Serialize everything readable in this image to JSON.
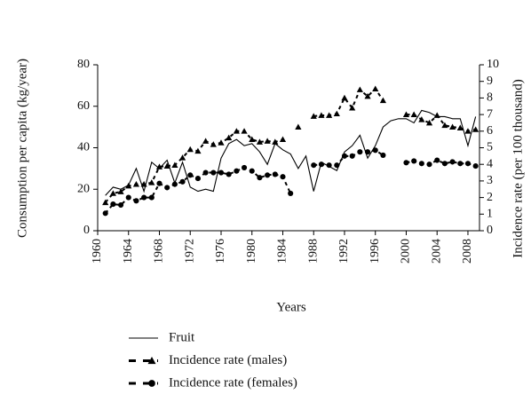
{
  "chart_data": {
    "type": "line",
    "x": [
      1961,
      1962,
      1963,
      1964,
      1965,
      1966,
      1967,
      1968,
      1969,
      1970,
      1971,
      1972,
      1973,
      1974,
      1975,
      1976,
      1977,
      1978,
      1979,
      1980,
      1981,
      1982,
      1983,
      1984,
      1985,
      1986,
      1987,
      1988,
      1989,
      1990,
      1991,
      1992,
      1993,
      1994,
      1995,
      1996,
      1997,
      1998,
      1999,
      2000,
      2001,
      2002,
      2003,
      2004,
      2005,
      2006,
      2007,
      2008,
      2009
    ],
    "series": [
      {
        "name": "Fruit",
        "color": "#000000",
        "style": "solid",
        "marker": "none",
        "values": [
          17,
          21,
          20,
          22,
          30,
          19,
          33,
          30,
          34,
          23,
          33,
          21,
          19,
          20,
          19,
          35,
          42,
          44,
          41,
          42,
          38,
          32,
          42,
          39,
          37,
          30,
          36,
          19,
          33,
          31,
          29,
          38,
          41,
          46,
          35,
          41,
          50,
          53,
          54,
          54,
          52,
          58,
          57,
          55,
          55,
          54,
          54,
          41,
          55
        ]
      },
      {
        "name": "Incidence rate (males)",
        "color": "#000000",
        "style": "dashed",
        "marker": "triangle",
        "axis": "y2",
        "values": [
          1.7,
          2.25,
          2.35,
          2.7,
          2.8,
          2.8,
          2.9,
          3.85,
          3.9,
          3.95,
          4.4,
          4.9,
          4.8,
          5.4,
          5.2,
          5.3,
          5.6,
          6.0,
          6.0,
          5.5,
          5.35,
          5.4,
          5.35,
          5.5,
          null,
          6.25,
          null,
          6.9,
          6.95,
          6.95,
          7.05,
          8.0,
          7.4,
          8.5,
          8.1,
          8.55,
          7.85,
          null,
          null,
          7.0,
          7.0,
          6.7,
          6.5,
          6.95,
          6.35,
          6.25,
          6.2,
          6.0,
          6.1
        ]
      },
      {
        "name": "Incidence rate (females)",
        "color": "#000000",
        "style": "dashed",
        "marker": "circle",
        "axis": "y2",
        "values": [
          1.05,
          1.6,
          1.55,
          2.0,
          1.8,
          2.0,
          2.0,
          2.85,
          2.6,
          2.8,
          2.95,
          3.35,
          3.15,
          3.5,
          3.5,
          3.5,
          3.4,
          3.6,
          3.8,
          3.6,
          3.2,
          3.35,
          3.4,
          3.25,
          2.25,
          null,
          null,
          3.95,
          4.0,
          3.95,
          3.95,
          4.5,
          4.5,
          4.75,
          4.75,
          4.85,
          4.55,
          null,
          null,
          4.1,
          4.2,
          4.05,
          4.0,
          4.25,
          4.05,
          4.15,
          4.05,
          4.05,
          3.9
        ]
      }
    ],
    "x_label": "Years",
    "y_label": "Consumption per capita (kg/year)",
    "y2_label": "Incidence rate (per 100 thousand)",
    "xlim": [
      1960,
      2009.5
    ],
    "xticks": [
      1960,
      1964,
      1968,
      1972,
      1976,
      1980,
      1984,
      1988,
      1992,
      1996,
      2000,
      2004,
      2008
    ],
    "ylim": [
      0,
      80
    ],
    "yticks": [
      0,
      20,
      40,
      60,
      80
    ],
    "y2lim": [
      0,
      10
    ],
    "y2ticks": [
      0,
      1,
      2,
      3,
      4,
      5,
      6,
      7,
      8,
      9,
      10
    ],
    "grid": false,
    "legend": "below"
  }
}
